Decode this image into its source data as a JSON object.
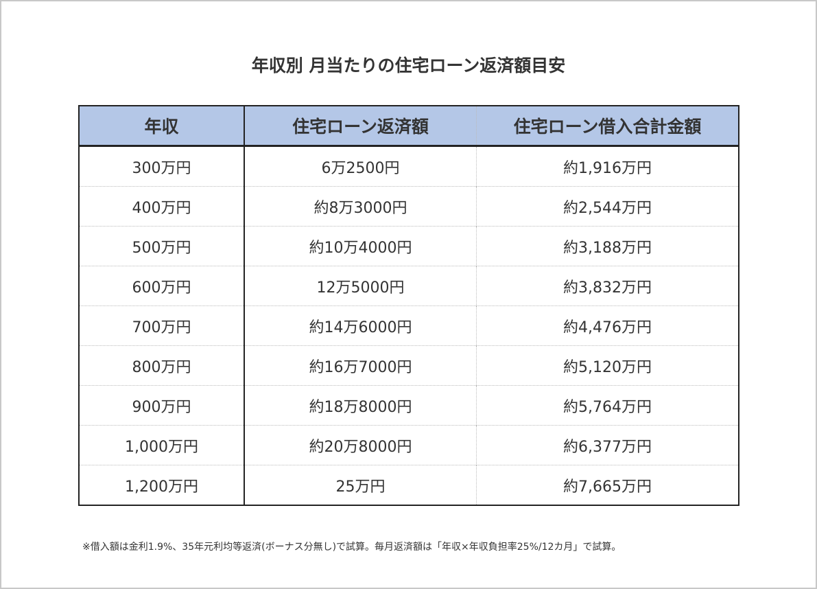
{
  "title": "年収別 月当たりの住宅ローン返済額目安",
  "table": {
    "header": [
      "年収",
      "住宅ローン返済額",
      "住宅ローン借入合計金額"
    ],
    "rows": [
      [
        "300万円",
        "6万2500円",
        "約1,916万円"
      ],
      [
        "400万円",
        "約8万3000円",
        "約2,544万円"
      ],
      [
        "500万円",
        "約10万4000円",
        "約3,188万円"
      ],
      [
        "600万円",
        "12万5000円",
        "約3,832万円"
      ],
      [
        "700万円",
        "約14万6000円",
        "約4,476万円"
      ],
      [
        "800万円",
        "約16万7000円",
        "約5,120万円"
      ],
      [
        "900万円",
        "約18万8000円",
        "約5,764万円"
      ],
      [
        "1,000万円",
        "約20万8000円",
        "約6,377万円"
      ],
      [
        "1,200万円",
        "25万円",
        "約7,665万円"
      ]
    ]
  },
  "footnote": "※借入額は金利1.9%、35年元利均等返済(ボーナス分無し)で試算。毎月返済額は「年収×年収負担率25%/12カ月」で試算。"
}
